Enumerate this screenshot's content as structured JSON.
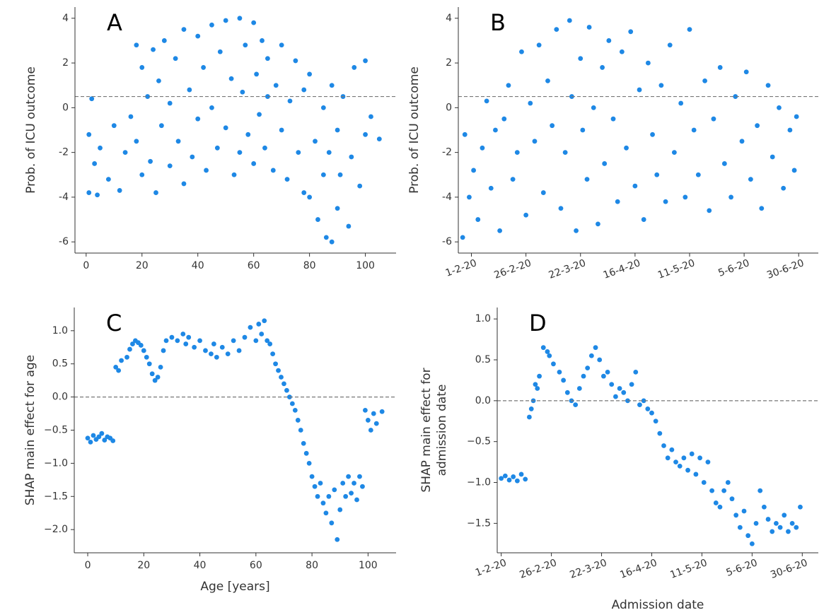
{
  "chart_data": [
    {
      "type": "scatter",
      "label": "A",
      "ylabel": "Prob. of ICU outcome",
      "color": "#1e88e5",
      "hline": 0.5,
      "xlim": [
        -4,
        111
      ],
      "ylim": [
        -6.5,
        4.5
      ],
      "xticks": [
        0,
        20,
        40,
        60,
        80,
        100
      ],
      "yticks": [
        -6,
        -4,
        -2,
        0,
        2,
        4
      ],
      "x": [
        1,
        1,
        2,
        3,
        4,
        5,
        8,
        10,
        12,
        14,
        16,
        18,
        18,
        20,
        20,
        22,
        23,
        24,
        25,
        26,
        27,
        28,
        30,
        30,
        32,
        33,
        35,
        35,
        37,
        38,
        40,
        40,
        42,
        43,
        45,
        45,
        47,
        48,
        50,
        50,
        52,
        53,
        55,
        55,
        56,
        57,
        58,
        60,
        60,
        61,
        62,
        63,
        64,
        65,
        65,
        67,
        68,
        70,
        70,
        72,
        73,
        75,
        76,
        78,
        78,
        80,
        80,
        82,
        83,
        85,
        85,
        86,
        87,
        88,
        88,
        90,
        90,
        91,
        92,
        94,
        95,
        96,
        98,
        100,
        100,
        102,
        105
      ],
      "values": [
        -3.8,
        -1.2,
        0.4,
        -2.5,
        -3.9,
        -1.8,
        -3.2,
        -0.8,
        -3.7,
        -2.0,
        -0.4,
        2.8,
        -1.5,
        1.8,
        -3.0,
        0.5,
        -2.4,
        2.6,
        -3.8,
        1.2,
        -0.8,
        3.0,
        -2.6,
        0.2,
        2.2,
        -1.5,
        3.5,
        -3.4,
        0.8,
        -2.2,
        3.2,
        -0.5,
        1.8,
        -2.8,
        3.7,
        0.0,
        -1.8,
        2.5,
        3.9,
        -0.9,
        1.3,
        -3.0,
        4.0,
        -2.0,
        0.7,
        2.8,
        -1.2,
        3.8,
        -2.5,
        1.5,
        -0.3,
        3.0,
        -1.8,
        2.2,
        0.5,
        -2.8,
        1.0,
        2.8,
        -1.0,
        -3.2,
        0.3,
        2.1,
        -2.0,
        -3.8,
        0.8,
        1.5,
        -4.0,
        -1.5,
        -5.0,
        0.0,
        -3.0,
        -5.8,
        -2.0,
        -6.0,
        1.0,
        -4.5,
        -1.0,
        -3.0,
        0.5,
        -5.3,
        -2.2,
        1.8,
        -3.5,
        2.1,
        -1.2,
        -0.4,
        -1.4
      ]
    },
    {
      "type": "scatter",
      "label": "B",
      "ylabel": "Prob. of ICU outcome",
      "color": "#1e88e5",
      "hline": 0.5,
      "xlim": [
        "2020-01-26",
        "2020-07-09"
      ],
      "ylim": [
        -6.5,
        4.5
      ],
      "xticks": [
        {
          "value": "2020-02-01",
          "label": "1-2-20"
        },
        {
          "value": "2020-02-26",
          "label": "26-2-20"
        },
        {
          "value": "2020-03-22",
          "label": "22-3-20"
        },
        {
          "value": "2020-04-16",
          "label": "16-4-20"
        },
        {
          "value": "2020-05-11",
          "label": "11-5-20"
        },
        {
          "value": "2020-06-05",
          "label": "5-6-20"
        },
        {
          "value": "2020-06-30",
          "label": "30-6-20"
        }
      ],
      "yticks": [
        -6,
        -4,
        -2,
        0,
        2,
        4
      ],
      "x": [
        "2020-01-28",
        "2020-01-29",
        "2020-01-31",
        "2020-02-02",
        "2020-02-04",
        "2020-02-06",
        "2020-02-08",
        "2020-02-10",
        "2020-02-12",
        "2020-02-14",
        "2020-02-16",
        "2020-02-18",
        "2020-02-20",
        "2020-02-22",
        "2020-02-24",
        "2020-02-26",
        "2020-02-28",
        "2020-03-01",
        "2020-03-03",
        "2020-03-05",
        "2020-03-07",
        "2020-03-09",
        "2020-03-11",
        "2020-03-13",
        "2020-03-15",
        "2020-03-17",
        "2020-03-18",
        "2020-03-20",
        "2020-03-22",
        "2020-03-23",
        "2020-03-25",
        "2020-03-26",
        "2020-03-28",
        "2020-03-30",
        "2020-04-01",
        "2020-04-02",
        "2020-04-04",
        "2020-04-06",
        "2020-04-08",
        "2020-04-10",
        "2020-04-12",
        "2020-04-14",
        "2020-04-16",
        "2020-04-18",
        "2020-04-20",
        "2020-04-22",
        "2020-04-24",
        "2020-04-26",
        "2020-04-28",
        "2020-04-30",
        "2020-05-02",
        "2020-05-04",
        "2020-05-07",
        "2020-05-09",
        "2020-05-11",
        "2020-05-13",
        "2020-05-15",
        "2020-05-18",
        "2020-05-20",
        "2020-05-22",
        "2020-05-25",
        "2020-05-27",
        "2020-05-30",
        "2020-06-01",
        "2020-06-04",
        "2020-06-06",
        "2020-06-08",
        "2020-06-11",
        "2020-06-13",
        "2020-06-16",
        "2020-06-18",
        "2020-06-21",
        "2020-06-23",
        "2020-06-26",
        "2020-06-28",
        "2020-06-29"
      ],
      "values": [
        -5.8,
        -1.2,
        -4.0,
        -2.8,
        -5.0,
        -1.8,
        0.3,
        -3.6,
        -1.0,
        -5.5,
        -0.5,
        1.0,
        -3.2,
        -2.0,
        2.5,
        -4.8,
        0.2,
        -1.5,
        2.8,
        -3.8,
        1.2,
        -0.8,
        3.5,
        -4.5,
        -2.0,
        3.9,
        0.5,
        -5.5,
        2.2,
        -1.0,
        -3.2,
        3.6,
        0.0,
        -5.2,
        1.8,
        -2.5,
        3.0,
        -0.5,
        -4.2,
        2.5,
        -1.8,
        3.4,
        -3.5,
        0.8,
        -5.0,
        2.0,
        -1.2,
        -3.0,
        1.0,
        -4.2,
        2.8,
        -2.0,
        0.2,
        -4.0,
        3.5,
        -1.0,
        -3.0,
        1.2,
        -4.6,
        -0.5,
        1.8,
        -2.5,
        -4.0,
        0.5,
        -1.5,
        1.6,
        -3.2,
        -0.8,
        -4.5,
        1.0,
        -2.2,
        0.0,
        -3.6,
        -1.0,
        -2.8,
        -0.4
      ]
    },
    {
      "type": "scatter",
      "label": "C",
      "ylabel": "SHAP main effect for age",
      "xlabel": "Age [years]",
      "color": "#1e88e5",
      "hline": 0,
      "xlim": [
        -4.8,
        110
      ],
      "ylim": [
        -2.35,
        1.35
      ],
      "xticks": [
        0,
        20,
        40,
        60,
        80,
        100
      ],
      "yticks": [
        {
          "value": -2,
          "label": "−2.0"
        },
        {
          "value": -1.5,
          "label": "−1.5"
        },
        {
          "value": -1,
          "label": "−1.0"
        },
        {
          "value": -0.5,
          "label": "−0.5"
        },
        {
          "value": 0,
          "label": "0.0"
        },
        {
          "value": 0.5,
          "label": "0.5"
        },
        {
          "value": 1,
          "label": "1.0"
        }
      ],
      "x": [
        0,
        1,
        2,
        3,
        4,
        5,
        6,
        7,
        8,
        9,
        10,
        11,
        12,
        14,
        15,
        16,
        17,
        18,
        19,
        20,
        21,
        22,
        23,
        24,
        25,
        26,
        27,
        28,
        30,
        32,
        34,
        35,
        36,
        38,
        40,
        42,
        44,
        45,
        46,
        48,
        50,
        52,
        54,
        56,
        58,
        60,
        61,
        62,
        63,
        64,
        65,
        66,
        67,
        68,
        69,
        70,
        71,
        72,
        73,
        74,
        75,
        76,
        77,
        78,
        79,
        80,
        81,
        82,
        83,
        84,
        85,
        86,
        87,
        88,
        89,
        90,
        91,
        92,
        93,
        94,
        95,
        96,
        97,
        98,
        99,
        100,
        101,
        102,
        103,
        105
      ],
      "values": [
        -0.62,
        -0.68,
        -0.58,
        -0.64,
        -0.6,
        -0.55,
        -0.65,
        -0.6,
        -0.62,
        -0.66,
        0.45,
        0.4,
        0.55,
        0.6,
        0.72,
        0.8,
        0.85,
        0.82,
        0.78,
        0.7,
        0.6,
        0.5,
        0.35,
        0.25,
        0.3,
        0.45,
        0.7,
        0.85,
        0.9,
        0.85,
        0.95,
        0.8,
        0.9,
        0.75,
        0.85,
        0.7,
        0.65,
        0.8,
        0.6,
        0.75,
        0.65,
        0.85,
        0.7,
        0.9,
        1.05,
        0.85,
        1.1,
        0.95,
        1.15,
        0.85,
        0.8,
        0.65,
        0.5,
        0.4,
        0.3,
        0.2,
        0.1,
        0.0,
        -0.1,
        -0.2,
        -0.35,
        -0.5,
        -0.7,
        -0.85,
        -1.0,
        -1.2,
        -1.35,
        -1.5,
        -1.3,
        -1.6,
        -1.75,
        -1.5,
        -1.9,
        -1.4,
        -2.15,
        -1.7,
        -1.3,
        -1.5,
        -1.2,
        -1.45,
        -1.3,
        -1.55,
        -1.2,
        -1.35,
        -0.2,
        -0.35,
        -0.5,
        -0.25,
        -0.4,
        -0.22
      ]
    },
    {
      "type": "scatter",
      "label": "D",
      "ylabel": [
        "SHAP main effect for",
        "admission date"
      ],
      "xlabel": "Admission date",
      "color": "#1e88e5",
      "hline": 0,
      "xlim": [
        "2020-01-30",
        "2020-07-08"
      ],
      "ylim": [
        -1.86,
        1.14
      ],
      "xticks": [
        {
          "value": "2020-02-01",
          "label": "1-2-20"
        },
        {
          "value": "2020-02-26",
          "label": "26-2-20"
        },
        {
          "value": "2020-03-22",
          "label": "22-3-20"
        },
        {
          "value": "2020-04-16",
          "label": "16-4-20"
        },
        {
          "value": "2020-05-11",
          "label": "11-5-20"
        },
        {
          "value": "2020-06-05",
          "label": "5-6-20"
        },
        {
          "value": "2020-06-30",
          "label": "30-6-20"
        }
      ],
      "yticks": [
        {
          "value": -1.5,
          "label": "−1.5"
        },
        {
          "value": -1,
          "label": "−1.0"
        },
        {
          "value": -0.5,
          "label": "−0.5"
        },
        {
          "value": 0,
          "label": "0.0"
        },
        {
          "value": 0.5,
          "label": "0.5"
        },
        {
          "value": 1,
          "label": "1.0"
        }
      ],
      "x": [
        "2020-02-01",
        "2020-02-03",
        "2020-02-05",
        "2020-02-07",
        "2020-02-09",
        "2020-02-11",
        "2020-02-13",
        "2020-02-15",
        "2020-02-16",
        "2020-02-17",
        "2020-02-18",
        "2020-02-19",
        "2020-02-20",
        "2020-02-22",
        "2020-02-24",
        "2020-02-25",
        "2020-02-27",
        "2020-03-01",
        "2020-03-03",
        "2020-03-05",
        "2020-03-07",
        "2020-03-09",
        "2020-03-11",
        "2020-03-13",
        "2020-03-15",
        "2020-03-17",
        "2020-03-19",
        "2020-03-21",
        "2020-03-23",
        "2020-03-25",
        "2020-03-27",
        "2020-03-29",
        "2020-03-31",
        "2020-04-02",
        "2020-04-04",
        "2020-04-06",
        "2020-04-08",
        "2020-04-10",
        "2020-04-12",
        "2020-04-14",
        "2020-04-16",
        "2020-04-18",
        "2020-04-20",
        "2020-04-22",
        "2020-04-24",
        "2020-04-26",
        "2020-04-28",
        "2020-04-30",
        "2020-05-02",
        "2020-05-04",
        "2020-05-06",
        "2020-05-08",
        "2020-05-10",
        "2020-05-12",
        "2020-05-14",
        "2020-05-16",
        "2020-05-18",
        "2020-05-20",
        "2020-05-22",
        "2020-05-24",
        "2020-05-26",
        "2020-05-28",
        "2020-05-30",
        "2020-06-01",
        "2020-06-03",
        "2020-06-05",
        "2020-06-07",
        "2020-06-09",
        "2020-06-11",
        "2020-06-13",
        "2020-06-15",
        "2020-06-17",
        "2020-06-19",
        "2020-06-21",
        "2020-06-23",
        "2020-06-25",
        "2020-06-27",
        "2020-06-29"
      ],
      "values": [
        -0.95,
        -0.92,
        -0.97,
        -0.93,
        -0.98,
        -0.9,
        -0.96,
        -0.2,
        -0.1,
        0.0,
        0.2,
        0.15,
        0.3,
        0.65,
        0.6,
        0.55,
        0.45,
        0.35,
        0.25,
        0.1,
        0.0,
        -0.05,
        0.15,
        0.3,
        0.4,
        0.55,
        0.65,
        0.5,
        0.3,
        0.35,
        0.2,
        0.05,
        0.15,
        0.1,
        0.0,
        0.2,
        0.35,
        -0.05,
        0.0,
        -0.1,
        -0.15,
        -0.25,
        -0.4,
        -0.55,
        -0.7,
        -0.6,
        -0.75,
        -0.8,
        -0.7,
        -0.85,
        -0.65,
        -0.9,
        -0.7,
        -1.0,
        -0.75,
        -1.1,
        -1.25,
        -1.3,
        -1.1,
        -1.0,
        -1.2,
        -1.4,
        -1.55,
        -1.35,
        -1.65,
        -1.75,
        -1.5,
        -1.1,
        -1.3,
        -1.45,
        -1.6,
        -1.5,
        -1.55,
        -1.4,
        -1.6,
        -1.5,
        -1.55,
        -1.3
      ]
    }
  ]
}
